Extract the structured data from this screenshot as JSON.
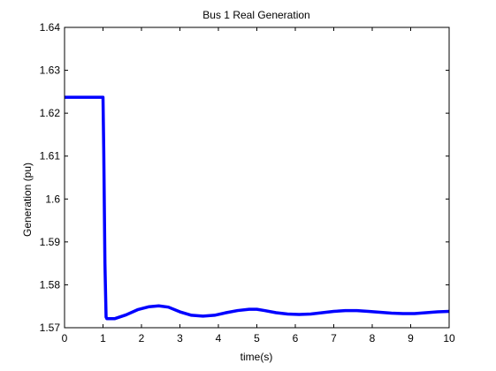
{
  "chart_data": {
    "type": "line",
    "title": "Bus 1 Real Generation",
    "xlabel": "time(s)",
    "ylabel": "Generation (pu)",
    "xlim": [
      0,
      10
    ],
    "ylim": [
      1.57,
      1.64
    ],
    "xticks": [
      0,
      1,
      2,
      3,
      4,
      5,
      6,
      7,
      8,
      9,
      10
    ],
    "xtick_labels": [
      "0",
      "1",
      "2",
      "3",
      "4",
      "5",
      "6",
      "7",
      "8",
      "9",
      "10"
    ],
    "yticks": [
      1.57,
      1.58,
      1.59,
      1.6,
      1.61,
      1.62,
      1.63,
      1.64
    ],
    "ytick_labels": [
      "1.57",
      "1.58",
      "1.59",
      "1.6",
      "1.61",
      "1.62",
      "1.63",
      "1.64"
    ],
    "grid": false,
    "series": [
      {
        "color": "#0000ff",
        "x": [
          0,
          1.0,
          1.0,
          1.02,
          1.05,
          1.08,
          1.1,
          1.3,
          1.6,
          1.9,
          2.2,
          2.45,
          2.7,
          3.0,
          3.3,
          3.6,
          3.9,
          4.2,
          4.5,
          4.8,
          5.0,
          5.2,
          5.5,
          5.8,
          6.1,
          6.4,
          6.7,
          7.0,
          7.3,
          7.6,
          7.9,
          8.2,
          8.5,
          8.8,
          9.1,
          9.4,
          9.7,
          10.0
        ],
        "y": [
          1.6237,
          1.6237,
          1.6237,
          1.611,
          1.585,
          1.5725,
          1.5721,
          1.5721,
          1.573,
          1.5742,
          1.5749,
          1.5751,
          1.5748,
          1.5737,
          1.5729,
          1.5727,
          1.5729,
          1.5735,
          1.574,
          1.5743,
          1.5743,
          1.574,
          1.5735,
          1.5732,
          1.5731,
          1.5732,
          1.5735,
          1.5738,
          1.574,
          1.574,
          1.5738,
          1.5736,
          1.5734,
          1.5733,
          1.5733,
          1.5735,
          1.5737,
          1.5738
        ]
      }
    ]
  }
}
